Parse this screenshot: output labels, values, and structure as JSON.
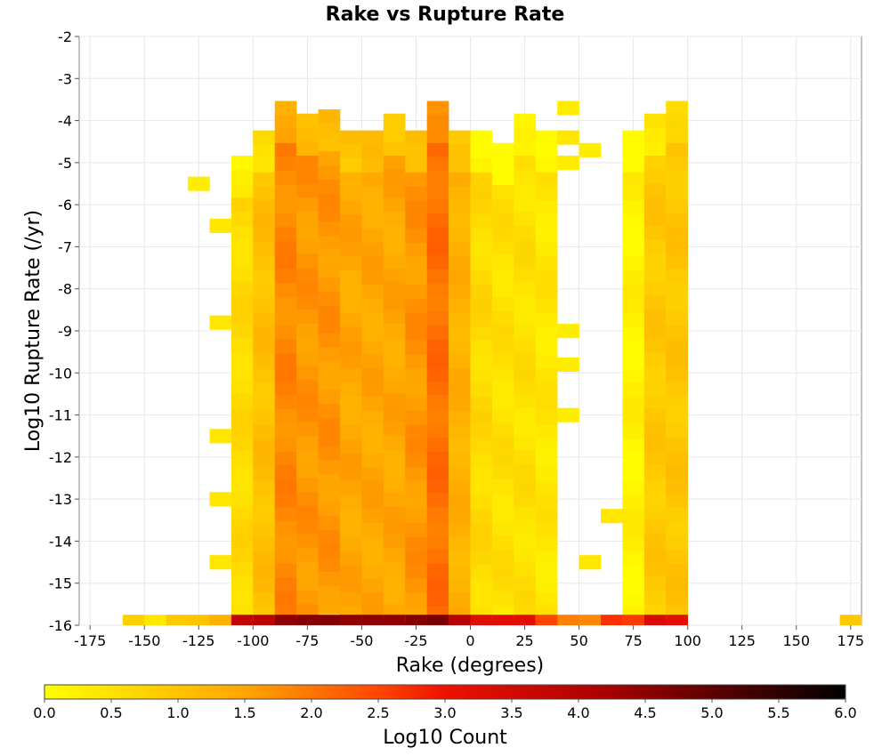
{
  "chart_data": {
    "type": "heatmap",
    "title": "Rake vs Rupture Rate",
    "xlabel": "Rake (degrees)",
    "ylabel": "Log10 Rupture Rate (/yr)",
    "xlim": [
      -180,
      180
    ],
    "ylim": [
      -16,
      -2
    ],
    "x_bin_width": 10,
    "y_bin_width": 0.33333,
    "x_ticks": [
      -175,
      -150,
      -125,
      -100,
      -75,
      -50,
      -25,
      0,
      25,
      50,
      75,
      100,
      125,
      150,
      175
    ],
    "y_ticks": [
      -2,
      -3,
      -4,
      -5,
      -6,
      -7,
      -8,
      -9,
      -10,
      -11,
      -12,
      -13,
      -14,
      -15,
      -16
    ],
    "grid": true,
    "colorbar": {
      "label": "Log10 Count",
      "min": 0,
      "max": 6,
      "ticks": [
        "0.0",
        "0.5",
        "1.0",
        "1.5",
        "2.0",
        "2.5",
        "3.0",
        "3.5",
        "4.0",
        "4.5",
        "5.0",
        "5.5",
        "6.0"
      ],
      "colors": [
        "#ffff00",
        "#ffa500",
        "#ff4400",
        "#cc0000",
        "#000000"
      ]
    },
    "columns": [
      {
        "x": -155,
        "bottom": 0.8,
        "profile": []
      },
      {
        "x": -145,
        "bottom": 0.4,
        "profile": []
      },
      {
        "x": -135,
        "bottom": 0.9,
        "profile": []
      },
      {
        "x": -125,
        "bottom": 1.0,
        "profile": [
          [
            -5.5,
            0.3
          ]
        ]
      },
      {
        "x": -115,
        "bottom": 1.3,
        "profile": [
          [
            -6.5,
            0.4
          ],
          [
            -8.8,
            0.4
          ],
          [
            -11.5,
            0.4
          ],
          [
            -13.0,
            0.4
          ],
          [
            -14.5,
            0.4
          ]
        ]
      },
      {
        "x": -105,
        "bottom": 3.8,
        "base": 0.6,
        "top": -5.0,
        "low": -15.8
      },
      {
        "x": -95,
        "bottom": 3.9,
        "base": 1.05,
        "top": -4.4,
        "low": -15.8
      },
      {
        "x": -85,
        "bottom": 4.5,
        "base": 1.8,
        "top": -3.7,
        "low": -15.8
      },
      {
        "x": -75,
        "bottom": 4.6,
        "base": 1.65,
        "top": -4.0,
        "low": -15.8
      },
      {
        "x": -65,
        "bottom": 4.6,
        "base": 1.65,
        "top": -3.9,
        "low": -15.8
      },
      {
        "x": -55,
        "bottom": 4.5,
        "base": 1.45,
        "top": -4.4,
        "low": -15.8
      },
      {
        "x": -45,
        "bottom": 4.5,
        "base": 1.45,
        "top": -4.4,
        "low": -15.8
      },
      {
        "x": -35,
        "bottom": 4.5,
        "base": 1.45,
        "top": -4.0,
        "low": -15.8
      },
      {
        "x": -25,
        "bottom": 4.6,
        "base": 1.65,
        "top": -4.4,
        "low": -15.8
      },
      {
        "x": -15,
        "bottom": 4.7,
        "base": 2.05,
        "top": -3.7,
        "low": -15.8
      },
      {
        "x": -5,
        "bottom": 4.0,
        "base": 1.3,
        "top": -4.4,
        "low": -15.8
      },
      {
        "x": 5,
        "bottom": 3.3,
        "base": 0.6,
        "top": -4.4,
        "low": -15.8
      },
      {
        "x": 15,
        "bottom": 3.2,
        "base": 0.5,
        "top": -4.7,
        "low": -15.8
      },
      {
        "x": 25,
        "bottom": 3.2,
        "base": 0.5,
        "top": -4.0,
        "low": -15.8
      },
      {
        "x": 35,
        "bottom": 2.5,
        "base": 0.4,
        "top": -4.4,
        "low": -15.8
      },
      {
        "x": 45,
        "bottom": 1.9,
        "profile": [
          [
            -3.7,
            0.3
          ],
          [
            -4.4,
            0.4
          ],
          [
            -5.0,
            0.3
          ],
          [
            -9.0,
            0.3
          ],
          [
            -9.8,
            0.3
          ],
          [
            -11.0,
            0.3
          ]
        ]
      },
      {
        "x": 55,
        "bottom": 1.8,
        "profile": [
          [
            -4.7,
            0.3
          ],
          [
            -14.5,
            0.4
          ]
        ]
      },
      {
        "x": 65,
        "bottom": 2.7,
        "profile": [
          [
            -13.4,
            0.4
          ]
        ]
      },
      {
        "x": 75,
        "bottom": 2.6,
        "base": 0.2,
        "top": -4.4,
        "low": -15.8
      },
      {
        "x": 85,
        "bottom": 3.4,
        "base": 0.9,
        "top": -4.0,
        "low": -15.8
      },
      {
        "x": 95,
        "bottom": 3.2,
        "base": 0.95,
        "top": -3.7,
        "low": -15.8
      },
      {
        "x": 175,
        "bottom": 0.9,
        "profile": []
      }
    ]
  }
}
